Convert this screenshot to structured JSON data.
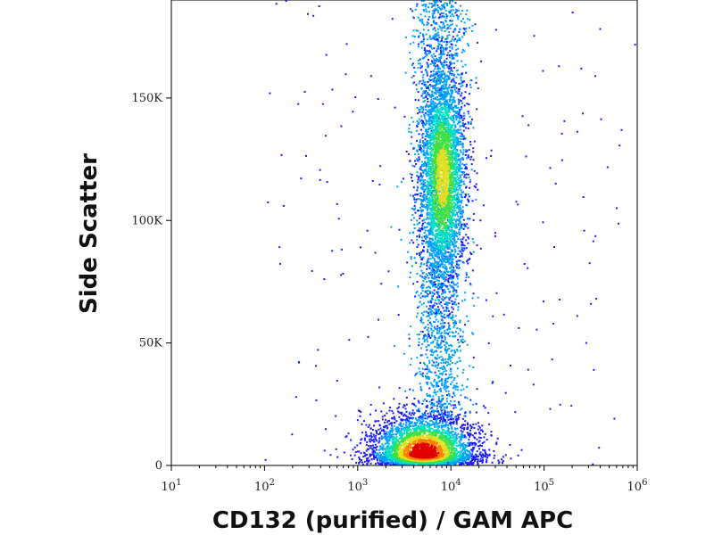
{
  "chart_data": {
    "type": "scatter",
    "subtype": "flow-cytometry-density-dot-plot",
    "xlabel": "CD132 (purified) / GAM APC",
    "ylabel": "Side Scatter",
    "x_scale": "log",
    "xlim": [
      10,
      1000000
    ],
    "x_ticks": [
      {
        "value": 10,
        "base": "10",
        "exp": "1"
      },
      {
        "value": 100,
        "base": "10",
        "exp": "2"
      },
      {
        "value": 1000,
        "base": "10",
        "exp": "3"
      },
      {
        "value": 10000,
        "base": "10",
        "exp": "4"
      },
      {
        "value": 100000,
        "base": "10",
        "exp": "5"
      },
      {
        "value": 1000000,
        "base": "10",
        "exp": "6"
      }
    ],
    "y_scale": "linear",
    "ylim": [
      0,
      190000
    ],
    "y_ticks": [
      {
        "value": 0,
        "label": "0"
      },
      {
        "value": 50000,
        "label": "50K"
      },
      {
        "value": 100000,
        "label": "100K"
      },
      {
        "value": 150000,
        "label": "150K"
      }
    ],
    "grid": false,
    "legend": "none",
    "density_colormap": [
      "#1a1aff",
      "#00a0ff",
      "#00e0c0",
      "#40e040",
      "#e0e020",
      "#ff8000",
      "#e00000"
    ],
    "populations": [
      {
        "label": "high-side-scatter cluster",
        "x_center": 8000,
        "y_center": 118000,
        "x_spread_decades": 0.12,
        "y_spread": 22000,
        "peak_density": 0.62
      },
      {
        "label": "vertical stream",
        "x_center": 7500,
        "y_range": [
          20000,
          190000
        ],
        "x_spread_decades": 0.14,
        "peak_density": 0.25
      },
      {
        "label": "low-side-scatter dense cluster",
        "x_center": 5000,
        "y_center": 5000,
        "x_spread_decades": 0.28,
        "y_spread": 5000,
        "peak_density": 1.0
      },
      {
        "label": "sparse outliers",
        "x_range": [
          100,
          1000000
        ],
        "y_range": [
          0,
          190000
        ],
        "peak_density": 0.05
      }
    ]
  }
}
